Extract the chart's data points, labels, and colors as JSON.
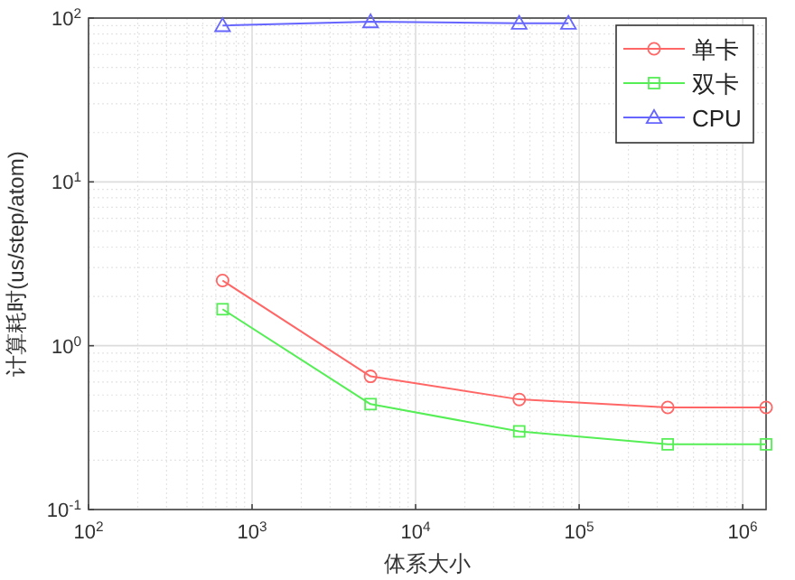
{
  "chart_data": {
    "type": "line",
    "xlabel": "体系大小",
    "ylabel": "计算耗时(us/step/atom)",
    "log": "xy",
    "grid": true,
    "legend": "top right",
    "xlim": [
      100,
      1390000
    ],
    "ylim": [
      0.1,
      100
    ],
    "xticks": [
      {
        "value": 100,
        "label": "10$^{2}$"
      },
      {
        "value": 1000,
        "label": "10$^{3}$"
      },
      {
        "value": 10000,
        "label": "10$^{4}$"
      },
      {
        "value": 100000,
        "label": "10$^{5}$"
      },
      {
        "value": 1000000,
        "label": "10$^{6}$"
      }
    ],
    "yticks": [
      {
        "value": 0.1,
        "label": "10$^{-1}$"
      },
      {
        "value": 1,
        "label": "10$^{0}$"
      },
      {
        "value": 10,
        "label": "10$^{1}$"
      },
      {
        "value": 100,
        "label": "10$^{2}$"
      }
    ],
    "series": [
      {
        "name": "单卡",
        "color": "#ff6666",
        "marker": "circle",
        "x": [
          660,
          5300,
          43000,
          348000,
          1390000
        ],
        "values": [
          2.5,
          0.65,
          0.47,
          0.42,
          0.42
        ]
      },
      {
        "name": "双卡",
        "color": "#55ee55",
        "marker": "square",
        "x": [
          660,
          5300,
          43000,
          348000,
          1390000
        ],
        "values": [
          1.67,
          0.44,
          0.3,
          0.25,
          0.25
        ]
      },
      {
        "name": "CPU",
        "color": "#6666ff",
        "marker": "triangle",
        "x": [
          660,
          5300,
          43000,
          86000
        ],
        "values": [
          90,
          95,
          93,
          93
        ]
      }
    ]
  }
}
